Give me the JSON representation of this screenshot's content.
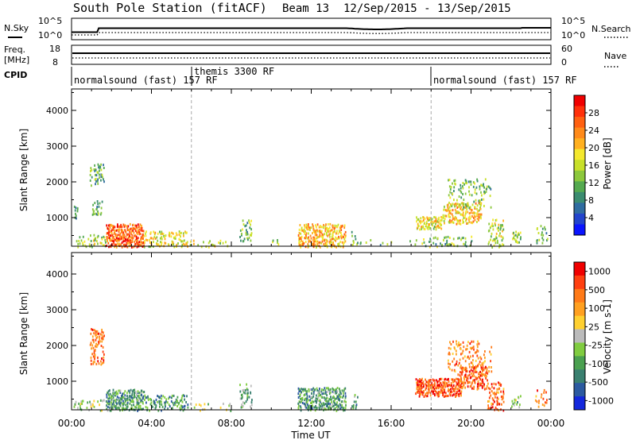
{
  "header": {
    "station": "South Pole Station (fitACF)",
    "beam": "Beam 13",
    "date_range": "12/Sep/2015 - 13/Sep/2015"
  },
  "noise_panel": {
    "left_label": "N.Sky",
    "right_label": "N.Search",
    "left_ticks": [
      "10^5",
      "10^0"
    ],
    "right_ticks": [
      "10^5",
      "10^0"
    ]
  },
  "freq_panel": {
    "left_label_1": "Freq.",
    "left_label_2": "[MHz]",
    "right_label": "Nave",
    "left_ticks": [
      "18",
      "8"
    ],
    "right_ticks": [
      "60",
      "0"
    ]
  },
  "cpid": {
    "label": "CPID",
    "segments": [
      {
        "start_h": 0,
        "end_h": 6,
        "text": "normalsound (fast) 157 RF"
      },
      {
        "start_h": 6,
        "end_h": 18,
        "text": "themis 3300 RF"
      },
      {
        "start_h": 18,
        "end_h": 24,
        "text": "normalsound (fast) 157 RF"
      }
    ]
  },
  "panels": {
    "power": {
      "ylabel": "Slant Range [km]",
      "cbar_label": "Power [dB]"
    },
    "velocity": {
      "ylabel": "Slant Range [km]",
      "cbar_label": "Velocity [m s-1]"
    }
  },
  "xaxis": {
    "ticks": [
      "00:00",
      "04:00",
      "08:00",
      "12:00",
      "16:00",
      "20:00",
      "00:00"
    ],
    "label": "Time UT"
  },
  "chart_data": [
    {
      "type": "heatmap",
      "name": "power",
      "x_range_hours": [
        0,
        24
      ],
      "ylim": [
        200,
        4600
      ],
      "y_ticks": [
        "1000",
        "2000",
        "3000",
        "4000"
      ],
      "colorbar": {
        "ticks": [
          "4",
          "8",
          "12",
          "16",
          "20",
          "24",
          "28"
        ],
        "colors": [
          "#0a14ff",
          "#2244cc",
          "#2f6ca0",
          "#3b8c70",
          "#55aa50",
          "#8cc83c",
          "#c8e02a",
          "#f4e82e",
          "#ffb020",
          "#ff8a1a",
          "#ff6010",
          "#ff300a",
          "#f00000"
        ]
      },
      "blobs": [
        {
          "t": [
            0.1,
            0.3
          ],
          "r": [
            900,
            1350
          ],
          "level": 0.25,
          "d": 0.35
        },
        {
          "t": [
            0.2,
            1.7
          ],
          "r": [
            200,
            560
          ],
          "level": 0.45,
          "d": 0.35
        },
        {
          "t": [
            0.9,
            1.6
          ],
          "r": [
            1900,
            2550
          ],
          "level": 0.35,
          "d": 0.45
        },
        {
          "t": [
            1.0,
            1.5
          ],
          "r": [
            1050,
            1500
          ],
          "level": 0.3,
          "d": 0.45
        },
        {
          "t": [
            1.7,
            3.6
          ],
          "r": [
            200,
            850
          ],
          "level": 0.82,
          "d": 0.85
        },
        {
          "t": [
            3.6,
            5.8
          ],
          "r": [
            200,
            650
          ],
          "level": 0.55,
          "d": 0.45
        },
        {
          "t": [
            5.9,
            8.0
          ],
          "r": [
            200,
            400
          ],
          "level": 0.5,
          "d": 0.2
        },
        {
          "t": [
            8.4,
            9.0
          ],
          "r": [
            300,
            950
          ],
          "level": 0.4,
          "d": 0.45
        },
        {
          "t": [
            10.0,
            10.7
          ],
          "r": [
            250,
            450
          ],
          "level": 0.4,
          "d": 0.3
        },
        {
          "t": [
            11.3,
            13.7
          ],
          "r": [
            200,
            850
          ],
          "level": 0.65,
          "d": 0.75
        },
        {
          "t": [
            14.0,
            14.3
          ],
          "r": [
            250,
            650
          ],
          "level": 0.35,
          "d": 0.4
        },
        {
          "t": [
            14.3,
            17.4
          ],
          "r": [
            250,
            400
          ],
          "level": 0.35,
          "d": 0.15
        },
        {
          "t": [
            17.2,
            18.5
          ],
          "r": [
            700,
            1050
          ],
          "level": 0.55,
          "d": 0.85
        },
        {
          "t": [
            18.5,
            20.5
          ],
          "r": [
            850,
            1450
          ],
          "level": 0.62,
          "d": 0.6
        },
        {
          "t": [
            18.8,
            21.0
          ],
          "r": [
            1300,
            2150
          ],
          "level": 0.4,
          "d": 0.25
        },
        {
          "t": [
            17.5,
            20.0
          ],
          "r": [
            200,
            500
          ],
          "level": 0.4,
          "d": 0.25
        },
        {
          "t": [
            20.8,
            21.6
          ],
          "r": [
            200,
            1000
          ],
          "level": 0.5,
          "d": 0.4
        },
        {
          "t": [
            22.0,
            22.5
          ],
          "r": [
            300,
            650
          ],
          "level": 0.45,
          "d": 0.5
        },
        {
          "t": [
            23.2,
            23.8
          ],
          "r": [
            300,
            800
          ],
          "level": 0.35,
          "d": 0.35
        }
      ]
    },
    {
      "type": "heatmap",
      "name": "velocity",
      "x_range_hours": [
        0,
        24
      ],
      "ylim": [
        200,
        4600
      ],
      "y_ticks": [
        "1000",
        "2000",
        "3000",
        "4000"
      ],
      "colorbar": {
        "ticks": [
          "1000",
          "500",
          "100",
          "25",
          "-25",
          "-100",
          "-500",
          "-1000"
        ],
        "colors": [
          "#1428dc",
          "#2c5aa0",
          "#3a8070",
          "#4aa050",
          "#80cc40",
          "#bbbbbb",
          "#ffd030",
          "#ffa020",
          "#ff7a18",
          "#ff4010",
          "#f00000"
        ]
      },
      "blobs": [
        {
          "t": [
            0.1,
            1.6
          ],
          "r": [
            200,
            500
          ],
          "level": 0.45,
          "d": 0.3
        },
        {
          "t": [
            0.9,
            1.6
          ],
          "r": [
            1500,
            2500
          ],
          "level": 0.82,
          "d": 0.45
        },
        {
          "t": [
            1.7,
            3.6
          ],
          "r": [
            200,
            800
          ],
          "level": 0.3,
          "d": 0.8
        },
        {
          "t": [
            3.6,
            5.8
          ],
          "r": [
            200,
            650
          ],
          "level": 0.28,
          "d": 0.45
        },
        {
          "t": [
            5.9,
            8.0
          ],
          "r": [
            200,
            400
          ],
          "level": 0.5,
          "d": 0.15
        },
        {
          "t": [
            8.4,
            9.0
          ],
          "r": [
            300,
            950
          ],
          "level": 0.35,
          "d": 0.45
        },
        {
          "t": [
            11.3,
            13.7
          ],
          "r": [
            200,
            850
          ],
          "level": 0.3,
          "d": 0.75
        },
        {
          "t": [
            14.0,
            14.3
          ],
          "r": [
            250,
            650
          ],
          "level": 0.3,
          "d": 0.4
        },
        {
          "t": [
            17.2,
            19.5
          ],
          "r": [
            600,
            1100
          ],
          "level": 0.85,
          "d": 0.85
        },
        {
          "t": [
            19.3,
            20.8
          ],
          "r": [
            800,
            1450
          ],
          "level": 0.82,
          "d": 0.6
        },
        {
          "t": [
            18.8,
            21.0
          ],
          "r": [
            1300,
            2150
          ],
          "level": 0.75,
          "d": 0.25
        },
        {
          "t": [
            20.8,
            21.6
          ],
          "r": [
            200,
            1000
          ],
          "level": 0.8,
          "d": 0.4
        },
        {
          "t": [
            22.0,
            22.5
          ],
          "r": [
            300,
            650
          ],
          "level": 0.4,
          "d": 0.5
        },
        {
          "t": [
            23.2,
            23.8
          ],
          "r": [
            300,
            800
          ],
          "level": 0.78,
          "d": 0.35
        }
      ]
    }
  ]
}
